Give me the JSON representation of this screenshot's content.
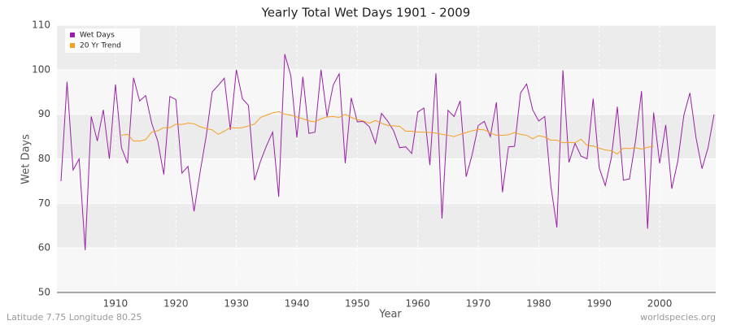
{
  "chart_data": {
    "type": "line",
    "title": "Yearly Total Wet Days 1901 - 2009",
    "x_label": "Year",
    "y_label": "Wet Days",
    "footer_left": "Latitude 7.75 Longitude 80.25",
    "footer_right": "worldspecies.org",
    "x": [
      1901,
      1902,
      1903,
      1904,
      1905,
      1906,
      1907,
      1908,
      1909,
      1910,
      1911,
      1912,
      1913,
      1914,
      1915,
      1916,
      1917,
      1918,
      1919,
      1920,
      1921,
      1922,
      1923,
      1924,
      1925,
      1926,
      1927,
      1928,
      1929,
      1930,
      1931,
      1932,
      1933,
      1934,
      1935,
      1936,
      1937,
      1938,
      1939,
      1940,
      1941,
      1942,
      1943,
      1944,
      1945,
      1946,
      1947,
      1948,
      1949,
      1950,
      1951,
      1952,
      1953,
      1954,
      1955,
      1956,
      1957,
      1958,
      1959,
      1960,
      1961,
      1962,
      1963,
      1964,
      1965,
      1966,
      1967,
      1968,
      1969,
      1970,
      1971,
      1972,
      1973,
      1974,
      1975,
      1976,
      1977,
      1978,
      1979,
      1980,
      1981,
      1982,
      1983,
      1984,
      1985,
      1986,
      1987,
      1988,
      1989,
      1990,
      1991,
      1992,
      1993,
      1994,
      1995,
      1996,
      1997,
      1998,
      1999,
      2000,
      2001,
      2002,
      2003,
      2004,
      2005,
      2006,
      2007,
      2008,
      2009
    ],
    "series": [
      {
        "name": "Wet Days",
        "color": "#9b1fa8",
        "values": [
          75,
          97.3,
          77.5,
          80,
          59.5,
          89.5,
          84,
          91,
          80,
          96.7,
          82.5,
          79,
          98.2,
          93,
          94.2,
          88,
          84,
          76.5,
          94,
          93.3,
          76.8,
          78.3,
          68.2,
          77,
          85,
          95,
          96.5,
          98.1,
          86.5,
          100,
          93.5,
          92,
          75.2,
          79.5,
          83,
          86,
          71.5,
          103.5,
          98.7,
          84.8,
          98.4,
          85.7,
          86,
          100,
          89.5,
          96.5,
          99.1,
          79,
          93.7,
          88.3,
          88.4,
          87.2,
          83.5,
          90.2,
          88.5,
          86.3,
          82.5,
          82.7,
          81.2,
          90.5,
          91.4,
          78.6,
          99.2,
          66.6,
          90.9,
          89.5,
          93,
          76,
          81,
          87.5,
          88.4,
          85,
          92.7,
          72.5,
          82.7,
          82.8,
          94.8,
          96.8,
          91,
          88.5,
          89.5,
          74,
          64.6,
          99.9,
          79.2,
          83.5,
          80.6,
          80,
          93.5,
          78,
          74,
          80.2,
          91.7,
          75.2,
          75.5,
          84,
          95.2,
          64.3,
          90.4,
          79,
          87.6,
          73.3,
          79.5,
          89.8,
          94.8,
          84.8,
          77.8,
          82.5,
          90
        ]
      },
      {
        "name": "20 Yr Trend",
        "color": "#f5a023",
        "values": [
          null,
          null,
          null,
          null,
          null,
          null,
          null,
          null,
          null,
          null,
          85.3,
          85.5,
          84,
          84,
          84.3,
          86,
          86.3,
          87,
          87,
          87.8,
          87.7,
          88,
          87.9,
          87.2,
          86.8,
          86.5,
          85.5,
          86.2,
          87,
          86.9,
          87,
          87.4,
          87.8,
          89.3,
          89.8,
          90.3,
          90.6,
          90,
          89.8,
          89.4,
          89,
          88.5,
          88.3,
          89,
          89.4,
          89.5,
          89.3,
          90,
          89.3,
          88.8,
          88.5,
          88,
          88.6,
          88,
          87.5,
          87.4,
          87.3,
          86.2,
          86.2,
          86,
          86,
          85.9,
          85.8,
          85.5,
          85.3,
          85,
          85.5,
          85.9,
          86.3,
          86.6,
          86.5,
          85.8,
          85.3,
          85.3,
          85.4,
          85.9,
          85.5,
          85.3,
          84.5,
          85.2,
          84.9,
          84.2,
          84.2,
          83.6,
          83.7,
          83.6,
          84.4,
          83,
          82.9,
          82.4,
          82,
          81.8,
          81.1,
          82.4,
          82.3,
          82.5,
          82.2,
          82.6,
          82.8,
          null,
          null,
          null,
          null,
          null,
          null,
          null,
          null,
          null,
          null
        ]
      }
    ],
    "xlim": [
      1901,
      2009
    ],
    "xticks": [
      1910,
      1920,
      1930,
      1940,
      1950,
      1960,
      1970,
      1980,
      1990,
      2000
    ],
    "ylim": [
      50,
      110
    ],
    "yticks": [
      50,
      60,
      70,
      80,
      90,
      100,
      110
    ],
    "grid": true,
    "legend": "top-left"
  }
}
